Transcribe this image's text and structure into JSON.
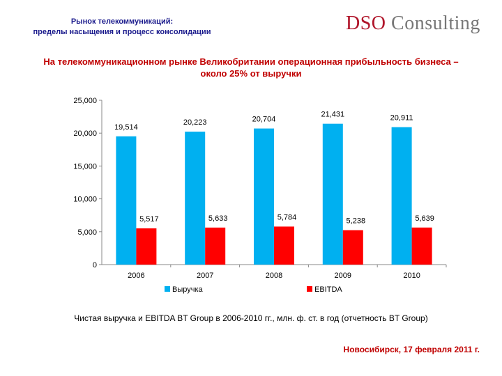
{
  "header": {
    "line1": "Рынок телекоммуникаций:",
    "line2": "пределы насыщения и процесс консолидации",
    "logo_part1": "DSO",
    "logo_part2": "Consulting"
  },
  "slide": {
    "subtitle_line1": "На телекоммуникационном рынке Великобритании операционная прибыльность бизнеса –",
    "subtitle_line2": "около 25% от выручки",
    "caption": "Чистая выручка и EBITDA BT Group в 2006-2010 гг., млн. ф. ст. в год (отчетность BT Group)",
    "footer": "Новосибирск, 17 февраля 2011 г."
  },
  "colors": {
    "revenue": "#00b0f0",
    "ebitda": "#ff0000",
    "title": "#1a1a8c",
    "accent": "#c00000"
  },
  "chart_data": {
    "type": "bar",
    "categories": [
      "2006",
      "2007",
      "2008",
      "2009",
      "2010"
    ],
    "series": [
      {
        "name": "Выручка",
        "values": [
          19514,
          20223,
          20704,
          21431,
          20911
        ],
        "labels": [
          "19,514",
          "20,223",
          "20,704",
          "21,431",
          "20,911"
        ]
      },
      {
        "name": "EBITDA",
        "values": [
          5517,
          5633,
          5784,
          5238,
          5639
        ],
        "labels": [
          "5,517",
          "5,633",
          "5,784",
          "5,238",
          "5,639"
        ]
      }
    ],
    "ylim": [
      0,
      25000
    ],
    "yticks": [
      0,
      5000,
      10000,
      15000,
      20000,
      25000
    ],
    "ytick_labels": [
      "0",
      "5,000",
      "10,000",
      "15,000",
      "20,000",
      "25,000"
    ],
    "legend_position": "bottom",
    "grid": false
  }
}
